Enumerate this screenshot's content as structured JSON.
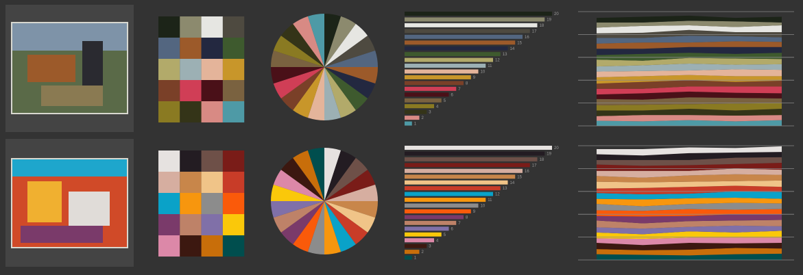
{
  "rows": [
    {
      "palette": [
        "#1c2418",
        "#8c8a6e",
        "#e6e6e2",
        "#4e4a40",
        "#536680",
        "#9c5a2a",
        "#232840",
        "#3e5a2e",
        "#b2aa6a",
        "#9cb0b4",
        "#e4b49a",
        "#c8962a",
        "#7a4028",
        "#d03e56",
        "#4a1018",
        "#7a6240",
        "#8a7a22",
        "#343418",
        "#d88a84",
        "#4e9aa6"
      ],
      "chart_data": [
        {
          "type": "swatches"
        },
        {
          "type": "pie",
          "values": [
            1,
            1,
            1,
            1,
            1,
            1,
            1,
            1,
            1,
            1,
            1,
            1,
            1,
            1,
            1,
            1,
            1,
            1,
            1,
            1
          ]
        },
        {
          "type": "bar",
          "values": [
            20,
            19,
            18,
            17,
            16,
            15,
            14,
            13,
            12,
            11,
            10,
            9,
            8,
            7,
            6,
            5,
            4,
            3,
            2,
            1
          ],
          "xlim": [
            0,
            20
          ]
        },
        {
          "type": "area",
          "x": [
            0,
            1,
            2,
            3,
            4
          ],
          "xlim": [
            0,
            4
          ],
          "ylim": [
            0,
            200
          ],
          "yticks": [
            0,
            40,
            80,
            120,
            160,
            200
          ],
          "grid": true,
          "series": [
            {
              "values": [
                8,
                10,
                9,
                6,
                10
              ]
            },
            {
              "values": [
                9,
                6,
                8,
                10,
                5
              ]
            },
            {
              "values": [
                10,
                12,
                8,
                9,
                12
              ]
            },
            {
              "values": [
                8,
                9,
                10,
                7,
                9
              ]
            },
            {
              "values": [
                10,
                8,
                12,
                9,
                8
              ]
            },
            {
              "values": [
                9,
                11,
                8,
                10,
                9
              ]
            },
            {
              "values": [
                11,
                9,
                10,
                12,
                10
              ]
            },
            {
              "values": [
                8,
                12,
                9,
                8,
                11
              ]
            },
            {
              "values": [
                12,
                8,
                10,
                11,
                9
              ]
            },
            {
              "values": [
                9,
                10,
                12,
                8,
                10
              ]
            },
            {
              "values": [
                10,
                9,
                8,
                12,
                11
              ]
            },
            {
              "values": [
                11,
                10,
                9,
                10,
                8
              ]
            },
            {
              "values": [
                9,
                12,
                11,
                8,
                10
              ]
            },
            {
              "values": [
                10,
                8,
                9,
                11,
                12
              ]
            },
            {
              "values": [
                8,
                11,
                10,
                9,
                9
              ]
            },
            {
              "values": [
                11,
                9,
                12,
                10,
                8
              ]
            },
            {
              "values": [
                9,
                10,
                8,
                12,
                10
              ]
            },
            {
              "values": [
                10,
                8,
                11,
                9,
                11
              ]
            },
            {
              "values": [
                8,
                11,
                9,
                10,
                9
              ]
            },
            {
              "values": [
                9,
                8,
                10,
                8,
                10
              ]
            }
          ]
        }
      ]
    },
    {
      "palette": [
        "#e6e2e0",
        "#231c22",
        "#6e5048",
        "#7a1c18",
        "#d6aea0",
        "#c8864a",
        "#f0c488",
        "#c83c28",
        "#0aa2c8",
        "#f7960e",
        "#8c8c8c",
        "#fa5a0a",
        "#7a3a6a",
        "#be8268",
        "#8070a8",
        "#fac80a",
        "#dc88a8",
        "#3c1810",
        "#c86e0a",
        "#004e4e"
      ],
      "chart_data": [
        {
          "type": "swatches"
        },
        {
          "type": "pie",
          "values": [
            1,
            1,
            1,
            1,
            1,
            1,
            1,
            1,
            1,
            1,
            1,
            1,
            1,
            1,
            1,
            1,
            1,
            1,
            1,
            1
          ]
        },
        {
          "type": "bar",
          "values": [
            20,
            19,
            18,
            17,
            16,
            15,
            14,
            13,
            12,
            11,
            10,
            9,
            8,
            7,
            6,
            5,
            4,
            3,
            2,
            1
          ],
          "xlim": [
            0,
            20
          ]
        },
        {
          "type": "area",
          "x": [
            0,
            1,
            2,
            3,
            4
          ],
          "xlim": [
            0,
            4
          ],
          "ylim": [
            0,
            200
          ],
          "yticks": [
            0,
            40,
            80,
            120,
            160,
            200
          ],
          "grid": true,
          "series": [
            {
              "values": [
                9,
                11,
                10,
                8,
                10
              ]
            },
            {
              "values": [
                10,
                8,
                12,
                9,
                9
              ]
            },
            {
              "values": [
                8,
                10,
                9,
                11,
                10
              ]
            },
            {
              "values": [
                11,
                9,
                10,
                8,
                12
              ]
            },
            {
              "values": [
                9,
                12,
                8,
                10,
                9
              ]
            },
            {
              "values": [
                10,
                8,
                11,
                12,
                10
              ]
            },
            {
              "values": [
                12,
                10,
                9,
                8,
                11
              ]
            },
            {
              "values": [
                8,
                11,
                12,
                10,
                9
              ]
            },
            {
              "values": [
                10,
                9,
                8,
                11,
                12
              ]
            },
            {
              "values": [
                9,
                12,
                10,
                9,
                8
              ]
            },
            {
              "values": [
                11,
                8,
                9,
                12,
                10
              ]
            },
            {
              "values": [
                10,
                10,
                12,
                8,
                9
              ]
            },
            {
              "values": [
                8,
                12,
                9,
                11,
                10
              ]
            },
            {
              "values": [
                12,
                9,
                10,
                9,
                11
              ]
            },
            {
              "values": [
                9,
                10,
                8,
                12,
                8
              ]
            },
            {
              "values": [
                10,
                8,
                11,
                9,
                12
              ]
            },
            {
              "values": [
                8,
                11,
                9,
                10,
                9
              ]
            },
            {
              "values": [
                11,
                9,
                12,
                8,
                10
              ]
            },
            {
              "values": [
                9,
                8,
                10,
                11,
                9
              ]
            },
            {
              "values": [
                10,
                9,
                8,
                10,
                11
              ]
            }
          ]
        }
      ]
    }
  ]
}
